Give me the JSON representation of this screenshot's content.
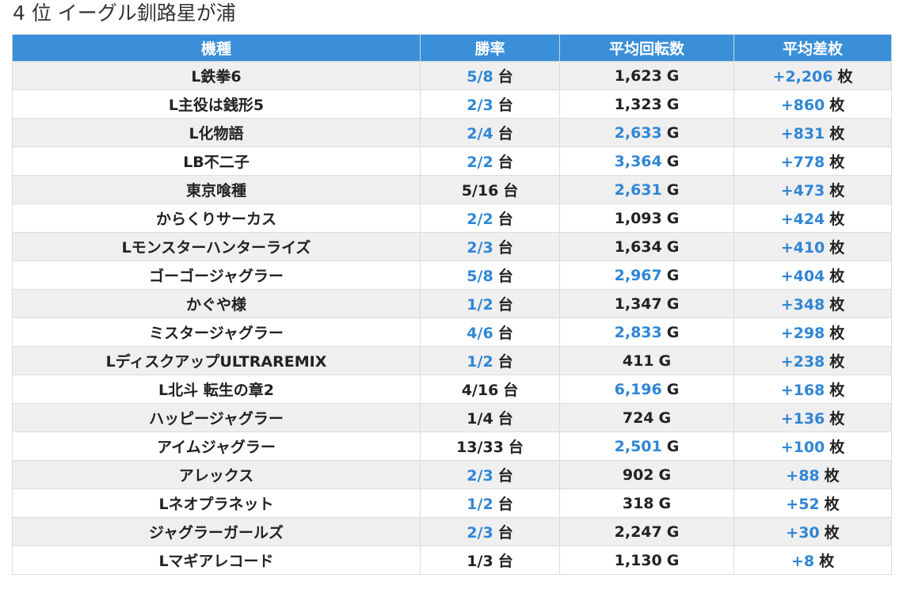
{
  "page": {
    "title": "4 位 イーグル釧路星が浦"
  },
  "colors": {
    "header_bg": "#3a8fd8",
    "highlight": "#2f86d6",
    "row_alt": "#efefef"
  },
  "table": {
    "headers": [
      "機種",
      "勝率",
      "平均回転数",
      "平均差枚"
    ],
    "rows": [
      {
        "machine": "L鉄拳6",
        "win": "5/8",
        "win_unit": "台",
        "win_hl": true,
        "spins": "1,623",
        "spins_unit": "G",
        "spins_hl": false,
        "diff": "+2,206",
        "diff_unit": "枚",
        "diff_hl": true
      },
      {
        "machine": "L主役は銭形5",
        "win": "2/3",
        "win_unit": "台",
        "win_hl": true,
        "spins": "1,323",
        "spins_unit": "G",
        "spins_hl": false,
        "diff": "+860",
        "diff_unit": "枚",
        "diff_hl": true
      },
      {
        "machine": "L化物語",
        "win": "2/4",
        "win_unit": "台",
        "win_hl": true,
        "spins": "2,633",
        "spins_unit": "G",
        "spins_hl": true,
        "diff": "+831",
        "diff_unit": "枚",
        "diff_hl": true
      },
      {
        "machine": "LB不二子",
        "win": "2/2",
        "win_unit": "台",
        "win_hl": true,
        "spins": "3,364",
        "spins_unit": "G",
        "spins_hl": true,
        "diff": "+778",
        "diff_unit": "枚",
        "diff_hl": true
      },
      {
        "machine": "東京喰種",
        "win": "5/16",
        "win_unit": "台",
        "win_hl": false,
        "spins": "2,631",
        "spins_unit": "G",
        "spins_hl": true,
        "diff": "+473",
        "diff_unit": "枚",
        "diff_hl": true
      },
      {
        "machine": "からくりサーカス",
        "win": "2/2",
        "win_unit": "台",
        "win_hl": true,
        "spins": "1,093",
        "spins_unit": "G",
        "spins_hl": false,
        "diff": "+424",
        "diff_unit": "枚",
        "diff_hl": true
      },
      {
        "machine": "Lモンスターハンターライズ",
        "win": "2/3",
        "win_unit": "台",
        "win_hl": true,
        "spins": "1,634",
        "spins_unit": "G",
        "spins_hl": false,
        "diff": "+410",
        "diff_unit": "枚",
        "diff_hl": true
      },
      {
        "machine": "ゴーゴージャグラー",
        "win": "5/8",
        "win_unit": "台",
        "win_hl": true,
        "spins": "2,967",
        "spins_unit": "G",
        "spins_hl": true,
        "diff": "+404",
        "diff_unit": "枚",
        "diff_hl": true
      },
      {
        "machine": "かぐや様",
        "win": "1/2",
        "win_unit": "台",
        "win_hl": true,
        "spins": "1,347",
        "spins_unit": "G",
        "spins_hl": false,
        "diff": "+348",
        "diff_unit": "枚",
        "diff_hl": true
      },
      {
        "machine": "ミスタージャグラー",
        "win": "4/6",
        "win_unit": "台",
        "win_hl": true,
        "spins": "2,833",
        "spins_unit": "G",
        "spins_hl": true,
        "diff": "+298",
        "diff_unit": "枚",
        "diff_hl": true
      },
      {
        "machine": "LディスクアップULTRAREMIX",
        "win": "1/2",
        "win_unit": "台",
        "win_hl": true,
        "spins": "411",
        "spins_unit": "G",
        "spins_hl": false,
        "diff": "+238",
        "diff_unit": "枚",
        "diff_hl": true
      },
      {
        "machine": "L北斗 転生の章2",
        "win": "4/16",
        "win_unit": "台",
        "win_hl": false,
        "spins": "6,196",
        "spins_unit": "G",
        "spins_hl": true,
        "diff": "+168",
        "diff_unit": "枚",
        "diff_hl": true
      },
      {
        "machine": "ハッピージャグラー",
        "win": "1/4",
        "win_unit": "台",
        "win_hl": false,
        "spins": "724",
        "spins_unit": "G",
        "spins_hl": false,
        "diff": "+136",
        "diff_unit": "枚",
        "diff_hl": true
      },
      {
        "machine": "アイムジャグラー",
        "win": "13/33",
        "win_unit": "台",
        "win_hl": false,
        "spins": "2,501",
        "spins_unit": "G",
        "spins_hl": true,
        "diff": "+100",
        "diff_unit": "枚",
        "diff_hl": true
      },
      {
        "machine": "アレックス",
        "win": "2/3",
        "win_unit": "台",
        "win_hl": true,
        "spins": "902",
        "spins_unit": "G",
        "spins_hl": false,
        "diff": "+88",
        "diff_unit": "枚",
        "diff_hl": true
      },
      {
        "machine": "Lネオプラネット",
        "win": "1/2",
        "win_unit": "台",
        "win_hl": true,
        "spins": "318",
        "spins_unit": "G",
        "spins_hl": false,
        "diff": "+52",
        "diff_unit": "枚",
        "diff_hl": true
      },
      {
        "machine": "ジャグラーガールズ",
        "win": "2/3",
        "win_unit": "台",
        "win_hl": true,
        "spins": "2,247",
        "spins_unit": "G",
        "spins_hl": false,
        "diff": "+30",
        "diff_unit": "枚",
        "diff_hl": true
      },
      {
        "machine": "Lマギアレコード",
        "win": "1/3",
        "win_unit": "台",
        "win_hl": false,
        "spins": "1,130",
        "spins_unit": "G",
        "spins_hl": false,
        "diff": "+8",
        "diff_unit": "枚",
        "diff_hl": true
      }
    ]
  }
}
